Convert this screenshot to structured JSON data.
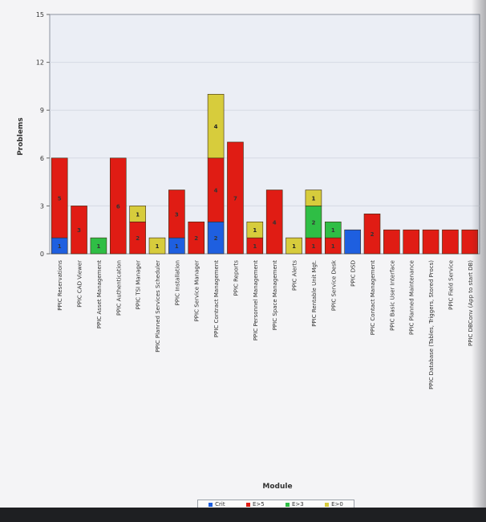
{
  "chart_data": {
    "type": "bar",
    "stacked": true,
    "title": "",
    "xlabel": "Module",
    "ylabel": "Problems",
    "ylim": [
      0,
      15
    ],
    "yticks": [
      0,
      3,
      6,
      9,
      12,
      15
    ],
    "grid": true,
    "legend_position": "bottom",
    "categories": [
      "PPIC Reservations",
      "PPIC CAD Viewer",
      "PPIC Asset Management",
      "PPIC Authentication",
      "PPIC TSI Manager",
      "PPIC Planned Services Scheduler",
      "PPIC Installation",
      "PPIC Service Manager",
      "PPIC Contract Management",
      "PPIC Reports",
      "PPIC Personnel Management",
      "PPIC Space Management",
      "PPIC Alerts",
      "PPIC Rentable Unit Mgt.",
      "PPIC Service Desk",
      "PPIC DSD",
      "PPIC Contact Management",
      "PPIC Basic User Interface",
      "PPIC Planned Maintenance",
      "PPIC Database (Tables, Triggers, Stored Procs)",
      "PPIC Field Service",
      "PPIC DBConv (App to start DB)"
    ],
    "series": [
      {
        "name": "Crit",
        "color": "#1e5fe0",
        "values": [
          1,
          0,
          0,
          0,
          0,
          0,
          1,
          0,
          2,
          0,
          0,
          0,
          0,
          0,
          0,
          1.5,
          0,
          0,
          0,
          0,
          0,
          0
        ]
      },
      {
        "name": "E>5",
        "color": "#e01c14",
        "values": [
          5,
          3,
          0,
          6,
          2,
          0,
          3,
          2,
          4,
          7,
          1,
          4,
          0,
          1,
          1,
          0,
          2.5,
          1.5,
          1.5,
          1.5,
          1.5,
          1.5
        ]
      },
      {
        "name": "E>3",
        "color": "#2fbe45",
        "values": [
          0,
          0,
          1,
          0,
          0,
          0,
          0,
          0,
          0,
          0,
          0,
          0,
          0,
          2,
          1,
          0,
          0,
          0,
          0,
          0,
          0,
          0
        ]
      },
      {
        "name": "E>0",
        "color": "#d7cc3c",
        "values": [
          0,
          0,
          0,
          0,
          1,
          1,
          0,
          0,
          4,
          0,
          1,
          0,
          1,
          1,
          0,
          0,
          0,
          0,
          0,
          0,
          0,
          0
        ]
      }
    ],
    "segment_labels": [
      [
        "1",
        "5",
        "",
        ""
      ],
      [
        "",
        "3",
        "",
        ""
      ],
      [
        "",
        "",
        "1",
        ""
      ],
      [
        "",
        "6",
        "",
        ""
      ],
      [
        "",
        "2",
        "",
        "1"
      ],
      [
        "",
        "",
        "",
        "1"
      ],
      [
        "1",
        "3",
        "",
        ""
      ],
      [
        "",
        "2",
        "",
        ""
      ],
      [
        "2",
        "4",
        "",
        "4"
      ],
      [
        "",
        "7",
        "",
        ""
      ],
      [
        "",
        "1",
        "",
        "1"
      ],
      [
        "",
        "4",
        "",
        ""
      ],
      [
        "",
        "",
        "",
        "1"
      ],
      [
        "",
        "1",
        "2",
        "1"
      ],
      [
        "",
        "1",
        "1",
        ""
      ],
      [
        "",
        "",
        "",
        ""
      ],
      [
        "",
        "2",
        "",
        ""
      ],
      [
        "",
        "",
        "",
        ""
      ],
      [
        "",
        "",
        "",
        ""
      ],
      [
        "",
        "",
        "",
        ""
      ],
      [
        "",
        "",
        "",
        ""
      ],
      [
        "",
        "",
        "",
        ""
      ]
    ]
  }
}
